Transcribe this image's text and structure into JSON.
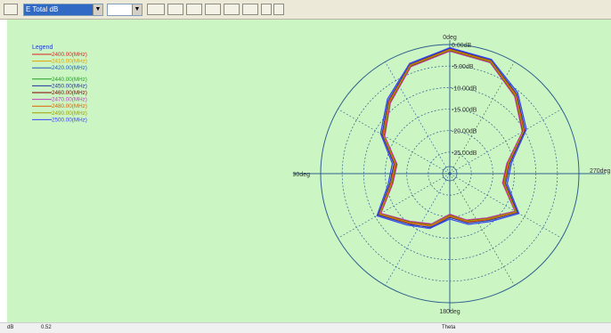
{
  "toolbar": {
    "quantity_select": "E Total dB",
    "second_select": "",
    "drop_arrow": "▼"
  },
  "status": {
    "unit": "dB",
    "value": "0.52",
    "axis": "Theta"
  },
  "colors": {
    "background": "#ccf5c4",
    "grid": "#2f5f8e"
  },
  "chart_data": {
    "type": "polar-line",
    "scale": "dB",
    "r_range": [
      -30,
      0
    ],
    "radial_ticks": [
      "0.00dB",
      "-5.00dB",
      "-10.00dB",
      "-15.00dB",
      "-20.00dB",
      "-25.00dB"
    ],
    "angle_labels": [
      "0deg",
      "270deg",
      "180deg",
      "90deg"
    ],
    "legend": {
      "title": "Legend",
      "placement": "top-left"
    },
    "angles_deg": [
      0,
      20,
      40,
      60,
      80,
      100,
      120,
      140,
      160,
      180,
      200,
      220,
      240,
      260,
      280,
      300,
      320,
      340
    ],
    "series": [
      {
        "name": "2400.00(MHz)",
        "color": "#e02020",
        "values": [
          -1,
          -3,
          -8,
          -12,
          -17,
          -16,
          -11,
          -15,
          -17,
          -20,
          -18,
          -16,
          -12,
          -17,
          -16,
          -10,
          -6,
          -2
        ]
      },
      {
        "name": "2410.00(MHz)",
        "color": "#e0a000",
        "values": [
          -1.5,
          -3.5,
          -8.5,
          -12.5,
          -17.5,
          -16.5,
          -11.5,
          -15.5,
          -17.5,
          -20.5,
          -18.5,
          -16.5,
          -12.5,
          -17.5,
          -16.5,
          -10.5,
          -6.5,
          -2.5
        ]
      },
      {
        "name": "2420.00(MHz)",
        "color": "#2060c0",
        "values": [
          -0.8,
          -2.8,
          -7.5,
          -11.5,
          -16.5,
          -15.5,
          -10.5,
          -14.5,
          -16.8,
          -19.5,
          -17.5,
          -15.5,
          -11.5,
          -16.5,
          -15.5,
          -9.5,
          -5.5,
          -1.8
        ]
      },
      {
        "name": "2440.00(MHz)",
        "color": "#20a020",
        "values": [
          -1.2,
          -3.2,
          -8.2,
          -12.2,
          -17.2,
          -16.2,
          -11.2,
          -15.2,
          -17.2,
          -20.2,
          -18.2,
          -16.2,
          -12.2,
          -17.2,
          -16.2,
          -10.2,
          -6.2,
          -2.2
        ]
      },
      {
        "name": "2450.00(MHz)",
        "color": "#2030a0",
        "values": [
          -0.9,
          -3.0,
          -7.8,
          -11.8,
          -16.8,
          -15.8,
          -10.8,
          -14.8,
          -16.6,
          -19.8,
          -17.8,
          -15.8,
          -11.8,
          -16.8,
          -15.8,
          -9.8,
          -5.8,
          -2.0
        ]
      },
      {
        "name": "2460.00(MHz)",
        "color": "#800000",
        "values": [
          -1.4,
          -3.4,
          -8.4,
          -12.4,
          -17.4,
          -16.4,
          -11.4,
          -15.4,
          -17.4,
          -20.4,
          -18.4,
          -16.4,
          -12.4,
          -17.4,
          -16.4,
          -10.4,
          -6.4,
          -2.4
        ]
      },
      {
        "name": "2470.00(MHz)",
        "color": "#c040c0",
        "values": [
          -1.6,
          -3.6,
          -8.6,
          -12.6,
          -17.6,
          -16.6,
          -11.6,
          -15.6,
          -17.6,
          -20.6,
          -18.6,
          -16.6,
          -12.6,
          -17.6,
          -16.6,
          -10.6,
          -6.6,
          -2.6
        ]
      },
      {
        "name": "2480.00(MHz)",
        "color": "#e06000",
        "values": [
          -1.1,
          -3.1,
          -8.1,
          -12.1,
          -17.1,
          -16.1,
          -11.1,
          -15.1,
          -17.1,
          -20.1,
          -18.1,
          -16.1,
          -12.1,
          -17.1,
          -16.1,
          -10.1,
          -6.1,
          -2.1
        ]
      },
      {
        "name": "2490.00(MHz)",
        "color": "#a0a000",
        "values": [
          -1.3,
          -3.3,
          -8.3,
          -12.3,
          -17.3,
          -16.3,
          -11.3,
          -15.3,
          -17.3,
          -20.3,
          -18.3,
          -16.3,
          -12.3,
          -17.3,
          -16.3,
          -10.3,
          -6.3,
          -2.3
        ]
      },
      {
        "name": "2500.00(MHz)",
        "color": "#4040ff",
        "values": [
          -0.7,
          -2.7,
          -7.4,
          -11.4,
          -16.4,
          -15.4,
          -10.4,
          -14.4,
          -16.4,
          -19.4,
          -17.4,
          -15.4,
          -11.4,
          -16.4,
          -15.4,
          -9.4,
          -5.4,
          -1.7
        ]
      }
    ]
  }
}
